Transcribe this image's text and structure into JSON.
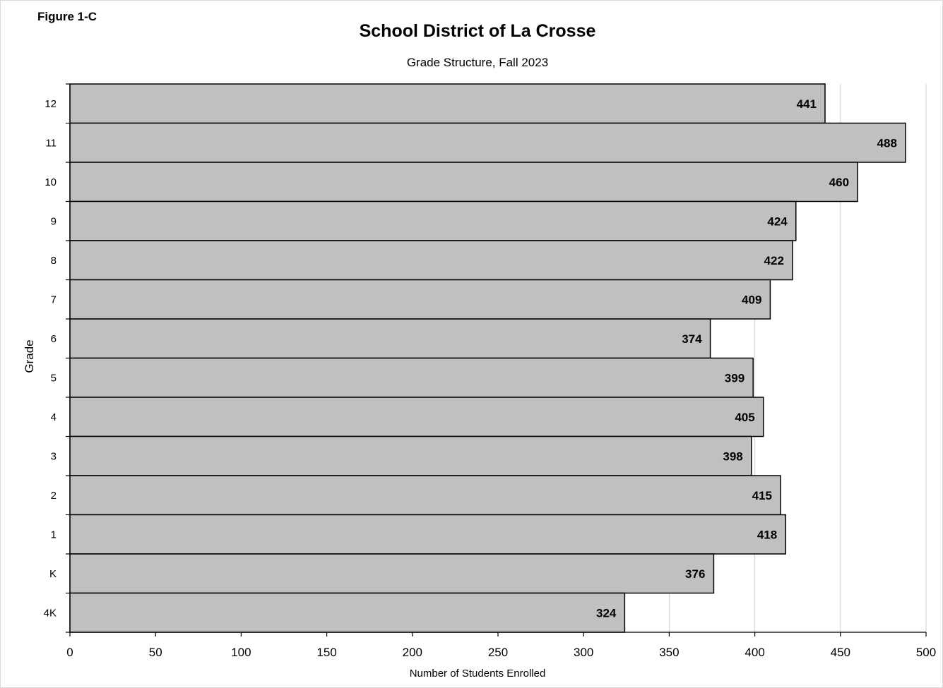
{
  "figure_label": "Figure 1-C",
  "chart_data": {
    "type": "bar",
    "orientation": "horizontal",
    "title": "School District of La Crosse",
    "subtitle": "Grade Structure,  Fall 2023",
    "xlabel": "Number of Students Enrolled",
    "ylabel": "Grade",
    "xlim": [
      0,
      500
    ],
    "xticks": [
      0,
      50,
      100,
      150,
      200,
      250,
      300,
      350,
      400,
      450,
      500
    ],
    "categories": [
      "12",
      "11",
      "10",
      "9",
      "8",
      "7",
      "6",
      "5",
      "4",
      "3",
      "2",
      "1",
      "K",
      "4K"
    ],
    "values": [
      441,
      488,
      460,
      424,
      422,
      409,
      374,
      399,
      405,
      398,
      415,
      418,
      376,
      324
    ],
    "data_labels": true,
    "grid": "vertical",
    "legend": "none",
    "bar_color": "#c0c0c0"
  }
}
